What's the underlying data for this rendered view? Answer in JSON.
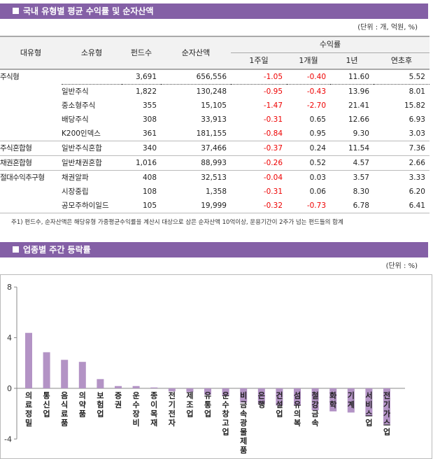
{
  "section1": {
    "title": "국내 유형별 평균 수익률 및 순자산액",
    "unit": "(단위 : 개, 억원, %)",
    "headers": {
      "major": "대유형",
      "minor": "소유형",
      "funds": "펀드수",
      "assets": "순자산액",
      "returns": "수익률",
      "w1": "1주일",
      "m1": "1개월",
      "y1": "1년",
      "ytd": "연초후"
    },
    "rows": [
      [
        "주식형",
        "",
        "3,691",
        "656,556",
        "-1.05",
        "-0.40",
        "11.60",
        "5.52"
      ],
      [
        "",
        "일반주식",
        "1,822",
        "130,248",
        "-0.95",
        "-0.43",
        "13.96",
        "8.01"
      ],
      [
        "",
        "중소형주식",
        "355",
        "15,105",
        "-1.47",
        "-2.70",
        "21.41",
        "15.82"
      ],
      [
        "",
        "배당주식",
        "308",
        "33,913",
        "-0.31",
        "0.65",
        "12.66",
        "6.93"
      ],
      [
        "",
        "K200인덱스",
        "361",
        "181,155",
        "-0.84",
        "0.95",
        "9.30",
        "3.03"
      ],
      [
        "주식혼합형",
        "일반주식혼합",
        "340",
        "37,466",
        "-0.37",
        "0.24",
        "11.54",
        "7.36"
      ],
      [
        "채권혼합형",
        "일반채권혼합",
        "1,016",
        "88,993",
        "-0.26",
        "0.52",
        "4.57",
        "2.66"
      ],
      [
        "절대수익추구형",
        "채권알파",
        "408",
        "32,513",
        "-0.04",
        "0.03",
        "3.57",
        "3.33"
      ],
      [
        "",
        "시장중립",
        "108",
        "1,358",
        "-0.31",
        "0.06",
        "8.30",
        "6.20"
      ],
      [
        "",
        "공모주하이일드",
        "105",
        "19,999",
        "-0.32",
        "-0.73",
        "6.78",
        "6.41"
      ]
    ],
    "note": "주1) 펀드수, 순자산액은 해당유형 가중평균수익률을 계산시 대상으로 삼은 순자산액 10억이상, 운용기간이 2주가 넘는 펀드들의 합계"
  },
  "section2": {
    "title": "업종별 주간 등락률",
    "unit": "(단위 : %)"
  },
  "colors": {
    "header": "#8460a6",
    "bar": "#b393c5",
    "negative": "#e00000"
  },
  "chart_data": {
    "type": "bar",
    "ylim": [
      -4,
      8
    ],
    "yticks": [
      "8",
      "4",
      "0",
      "-4"
    ],
    "grid": false,
    "categories": [
      "의료정밀",
      "통신업",
      "음식료품",
      "의약품",
      "보험업",
      "증권",
      "운수장비",
      "종이목재",
      "전기전자",
      "제조업",
      "유통업",
      "운수창고업",
      "비금속광물제품",
      "은행",
      "건설업",
      "섬유의복",
      "철강금속",
      "화학",
      "기계",
      "서비스업",
      "전기가스업"
    ],
    "values": [
      4.38,
      2.85,
      2.25,
      2.09,
      0.73,
      0.18,
      0.18,
      0.07,
      -0.24,
      -0.29,
      -0.51,
      -0.58,
      -1.13,
      -1.24,
      -1.36,
      -1.36,
      -1.73,
      -1.82,
      -1.91,
      -2.2,
      -2.85
    ]
  }
}
